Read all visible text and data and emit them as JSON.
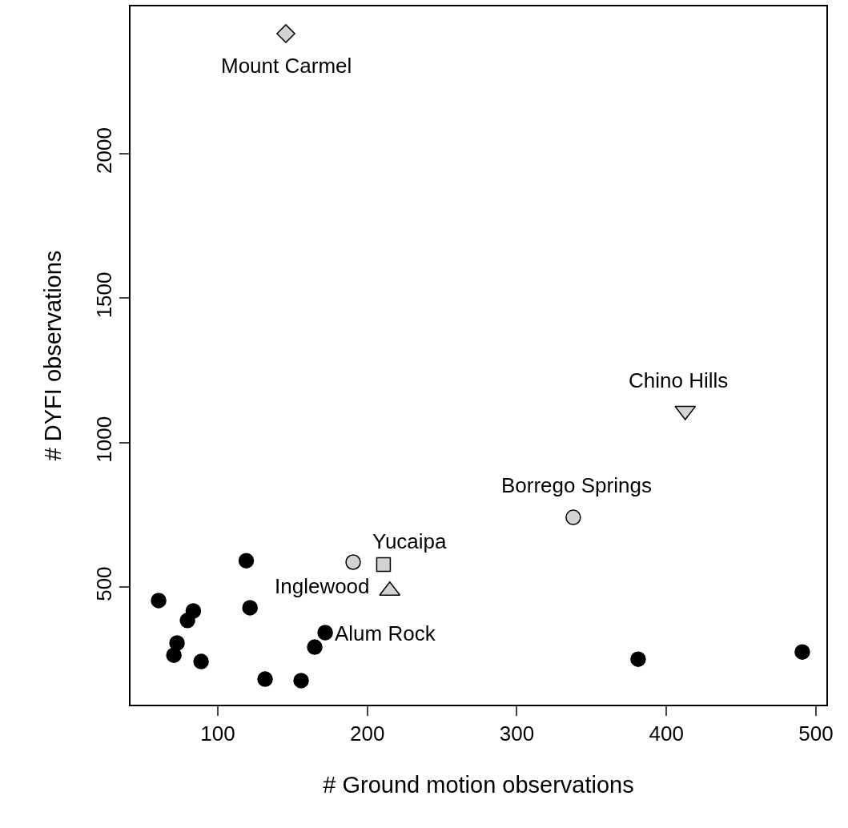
{
  "chart_data": {
    "type": "scatter",
    "xlabel": "# Ground motion observations",
    "ylabel": "# DYFI observations",
    "xlim": [
      41.6,
      507
    ],
    "ylim": [
      92.5,
      2510
    ],
    "xticks": [
      100,
      200,
      300,
      400,
      500
    ],
    "yticks": [
      500,
      1000,
      1500,
      2000
    ],
    "grid": false,
    "series": [
      {
        "color": "#000000",
        "marker": "circle",
        "x": [
          60.4,
          119,
          83.6,
          121.5,
          79.7,
          72.7,
          70.6,
          88.8,
          171.8,
          164.8,
          131.6,
          155.7,
          381.1,
          490.9
        ],
        "values": [
          453,
          591,
          417,
          428,
          384,
          306,
          264,
          242,
          342,
          292,
          181,
          176,
          250,
          275
        ]
      },
      {
        "color": "#d3d3d3",
        "marker": "diamond",
        "x": [
          145.5
        ],
        "values": [
          2416
        ]
      },
      {
        "color": "#d3d3d3",
        "marker": "triangle-down",
        "x": [
          412.6
        ],
        "values": [
          1110
        ]
      },
      {
        "color": "#d3d3d3",
        "marker": "circle",
        "x": [
          337.7,
          190.5
        ],
        "values": [
          741,
          586
        ]
      },
      {
        "color": "#d3d3d3",
        "marker": "square",
        "x": [
          210.8
        ],
        "values": [
          578
        ]
      },
      {
        "color": "#d3d3d3",
        "marker": "triangle",
        "x": [
          215
        ],
        "values": [
          487
        ]
      }
    ],
    "annotations": [
      {
        "text": "Mount Carmel",
        "x": 145.5,
        "y": 2416
      },
      {
        "text": "Chino Hills",
        "x": 412.6,
        "y": 1110
      },
      {
        "text": "Borrego Springs",
        "x": 337.7,
        "y": 741
      },
      {
        "text": "Yucaipa",
        "x": 210.8,
        "y": 578
      },
      {
        "text": "Inglewood",
        "x": 190.5,
        "y": 586
      },
      {
        "text": "Alum Rock",
        "x": 215,
        "y": 487
      }
    ]
  }
}
